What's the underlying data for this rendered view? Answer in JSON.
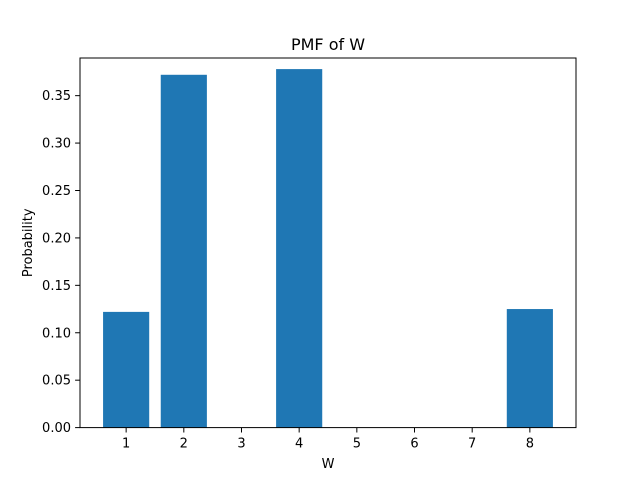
{
  "chart_data": {
    "type": "bar",
    "title": "PMF of W",
    "xlabel": "W",
    "ylabel": "Probability",
    "x": [
      1,
      2,
      4,
      8
    ],
    "values": [
      0.122,
      0.372,
      0.378,
      0.125
    ],
    "xticks": [
      "1",
      "2",
      "3",
      "4",
      "5",
      "6",
      "7",
      "8"
    ],
    "yticks": [
      "0.00",
      "0.05",
      "0.10",
      "0.15",
      "0.20",
      "0.25",
      "0.30",
      "0.35"
    ],
    "xlim": [
      0.2,
      8.8
    ],
    "ylim": [
      0,
      0.3897
    ],
    "bar_width": 0.8,
    "grid": false,
    "bar_color": "#1f77b4"
  }
}
